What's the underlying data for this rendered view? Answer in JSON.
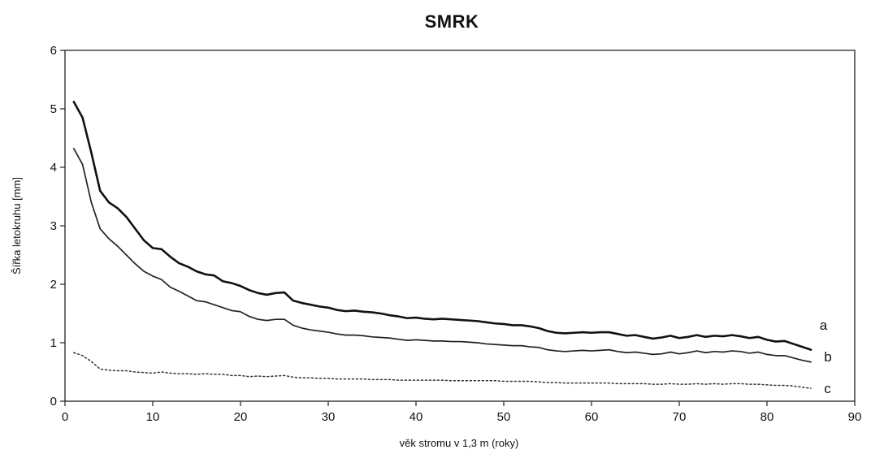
{
  "chart_data": {
    "type": "line",
    "title": "SMRK",
    "xlabel": "věk stromu v 1,3 m (roky)",
    "ylabel": "Šířka letokruhu [mm]",
    "xlim": [
      0,
      90
    ],
    "ylim": [
      0,
      6
    ],
    "xticks": [
      "0",
      "10",
      "20",
      "30",
      "40",
      "50",
      "60",
      "70",
      "80",
      "90"
    ],
    "yticks": [
      "0",
      "1",
      "2",
      "3",
      "4",
      "5",
      "6"
    ],
    "grid": false,
    "legend": "none",
    "series": [
      {
        "name": "a",
        "style": "solid-thick",
        "color": "#111111",
        "points": [
          [
            1,
            5.12
          ],
          [
            2,
            4.85
          ],
          [
            3,
            4.25
          ],
          [
            4,
            3.6
          ],
          [
            5,
            3.4
          ],
          [
            6,
            3.3
          ],
          [
            7,
            3.15
          ],
          [
            8,
            2.95
          ],
          [
            9,
            2.75
          ],
          [
            10,
            2.62
          ],
          [
            11,
            2.6
          ],
          [
            12,
            2.47
          ],
          [
            13,
            2.36
          ],
          [
            14,
            2.3
          ],
          [
            15,
            2.22
          ],
          [
            16,
            2.17
          ],
          [
            17,
            2.15
          ],
          [
            18,
            2.05
          ],
          [
            19,
            2.02
          ],
          [
            20,
            1.97
          ],
          [
            21,
            1.9
          ],
          [
            22,
            1.85
          ],
          [
            23,
            1.82
          ],
          [
            24,
            1.85
          ],
          [
            25,
            1.86
          ],
          [
            26,
            1.72
          ],
          [
            27,
            1.68
          ],
          [
            28,
            1.65
          ],
          [
            29,
            1.62
          ],
          [
            30,
            1.6
          ],
          [
            31,
            1.56
          ],
          [
            32,
            1.54
          ],
          [
            33,
            1.55
          ],
          [
            34,
            1.53
          ],
          [
            35,
            1.52
          ],
          [
            36,
            1.5
          ],
          [
            37,
            1.47
          ],
          [
            38,
            1.45
          ],
          [
            39,
            1.42
          ],
          [
            40,
            1.43
          ],
          [
            41,
            1.41
          ],
          [
            42,
            1.4
          ],
          [
            43,
            1.41
          ],
          [
            44,
            1.4
          ],
          [
            45,
            1.39
          ],
          [
            46,
            1.38
          ],
          [
            47,
            1.37
          ],
          [
            48,
            1.35
          ],
          [
            49,
            1.33
          ],
          [
            50,
            1.32
          ],
          [
            51,
            1.3
          ],
          [
            52,
            1.3
          ],
          [
            53,
            1.28
          ],
          [
            54,
            1.25
          ],
          [
            55,
            1.2
          ],
          [
            56,
            1.17
          ],
          [
            57,
            1.16
          ],
          [
            58,
            1.17
          ],
          [
            59,
            1.18
          ],
          [
            60,
            1.17
          ],
          [
            61,
            1.18
          ],
          [
            62,
            1.18
          ],
          [
            63,
            1.15
          ],
          [
            64,
            1.12
          ],
          [
            65,
            1.13
          ],
          [
            66,
            1.1
          ],
          [
            67,
            1.07
          ],
          [
            68,
            1.09
          ],
          [
            69,
            1.12
          ],
          [
            70,
            1.08
          ],
          [
            71,
            1.1
          ],
          [
            72,
            1.13
          ],
          [
            73,
            1.1
          ],
          [
            74,
            1.12
          ],
          [
            75,
            1.11
          ],
          [
            76,
            1.13
          ],
          [
            77,
            1.11
          ],
          [
            78,
            1.08
          ],
          [
            79,
            1.1
          ],
          [
            80,
            1.05
          ],
          [
            81,
            1.02
          ],
          [
            82,
            1.03
          ],
          [
            83,
            0.98
          ],
          [
            84,
            0.93
          ],
          [
            85,
            0.88
          ]
        ]
      },
      {
        "name": "b",
        "style": "solid-thin",
        "color": "#222222",
        "points": [
          [
            1,
            4.32
          ],
          [
            2,
            4.05
          ],
          [
            3,
            3.4
          ],
          [
            4,
            2.95
          ],
          [
            5,
            2.78
          ],
          [
            6,
            2.65
          ],
          [
            7,
            2.5
          ],
          [
            8,
            2.35
          ],
          [
            9,
            2.22
          ],
          [
            10,
            2.14
          ],
          [
            11,
            2.08
          ],
          [
            12,
            1.95
          ],
          [
            13,
            1.88
          ],
          [
            14,
            1.8
          ],
          [
            15,
            1.72
          ],
          [
            16,
            1.7
          ],
          [
            17,
            1.65
          ],
          [
            18,
            1.6
          ],
          [
            19,
            1.55
          ],
          [
            20,
            1.53
          ],
          [
            21,
            1.45
          ],
          [
            22,
            1.4
          ],
          [
            23,
            1.38
          ],
          [
            24,
            1.4
          ],
          [
            25,
            1.4
          ],
          [
            26,
            1.3
          ],
          [
            27,
            1.25
          ],
          [
            28,
            1.22
          ],
          [
            29,
            1.2
          ],
          [
            30,
            1.18
          ],
          [
            31,
            1.15
          ],
          [
            32,
            1.13
          ],
          [
            33,
            1.13
          ],
          [
            34,
            1.12
          ],
          [
            35,
            1.1
          ],
          [
            36,
            1.09
          ],
          [
            37,
            1.08
          ],
          [
            38,
            1.06
          ],
          [
            39,
            1.04
          ],
          [
            40,
            1.05
          ],
          [
            41,
            1.04
          ],
          [
            42,
            1.03
          ],
          [
            43,
            1.03
          ],
          [
            44,
            1.02
          ],
          [
            45,
            1.02
          ],
          [
            46,
            1.01
          ],
          [
            47,
            1.0
          ],
          [
            48,
            0.98
          ],
          [
            49,
            0.97
          ],
          [
            50,
            0.96
          ],
          [
            51,
            0.95
          ],
          [
            52,
            0.95
          ],
          [
            53,
            0.93
          ],
          [
            54,
            0.92
          ],
          [
            55,
            0.88
          ],
          [
            56,
            0.86
          ],
          [
            57,
            0.85
          ],
          [
            58,
            0.86
          ],
          [
            59,
            0.87
          ],
          [
            60,
            0.86
          ],
          [
            61,
            0.87
          ],
          [
            62,
            0.88
          ],
          [
            63,
            0.85
          ],
          [
            64,
            0.83
          ],
          [
            65,
            0.84
          ],
          [
            66,
            0.82
          ],
          [
            67,
            0.8
          ],
          [
            68,
            0.81
          ],
          [
            69,
            0.84
          ],
          [
            70,
            0.81
          ],
          [
            71,
            0.83
          ],
          [
            72,
            0.86
          ],
          [
            73,
            0.83
          ],
          [
            74,
            0.85
          ],
          [
            75,
            0.84
          ],
          [
            76,
            0.86
          ],
          [
            77,
            0.85
          ],
          [
            78,
            0.82
          ],
          [
            79,
            0.84
          ],
          [
            80,
            0.8
          ],
          [
            81,
            0.78
          ],
          [
            82,
            0.78
          ],
          [
            83,
            0.74
          ],
          [
            84,
            0.7
          ],
          [
            85,
            0.67
          ]
        ]
      },
      {
        "name": "c",
        "style": "dotted",
        "color": "#333333",
        "points": [
          [
            1,
            0.83
          ],
          [
            2,
            0.78
          ],
          [
            3,
            0.68
          ],
          [
            4,
            0.55
          ],
          [
            5,
            0.53
          ],
          [
            6,
            0.52
          ],
          [
            7,
            0.52
          ],
          [
            8,
            0.5
          ],
          [
            9,
            0.49
          ],
          [
            10,
            0.48
          ],
          [
            11,
            0.5
          ],
          [
            12,
            0.48
          ],
          [
            13,
            0.47
          ],
          [
            14,
            0.47
          ],
          [
            15,
            0.46
          ],
          [
            16,
            0.47
          ],
          [
            17,
            0.46
          ],
          [
            18,
            0.46
          ],
          [
            19,
            0.44
          ],
          [
            20,
            0.44
          ],
          [
            21,
            0.42
          ],
          [
            22,
            0.43
          ],
          [
            23,
            0.42
          ],
          [
            24,
            0.43
          ],
          [
            25,
            0.44
          ],
          [
            26,
            0.41
          ],
          [
            27,
            0.4
          ],
          [
            28,
            0.4
          ],
          [
            29,
            0.39
          ],
          [
            30,
            0.39
          ],
          [
            31,
            0.38
          ],
          [
            32,
            0.38
          ],
          [
            33,
            0.38
          ],
          [
            34,
            0.38
          ],
          [
            35,
            0.37
          ],
          [
            36,
            0.37
          ],
          [
            37,
            0.37
          ],
          [
            38,
            0.36
          ],
          [
            39,
            0.36
          ],
          [
            40,
            0.36
          ],
          [
            41,
            0.36
          ],
          [
            42,
            0.36
          ],
          [
            43,
            0.36
          ],
          [
            44,
            0.35
          ],
          [
            45,
            0.35
          ],
          [
            46,
            0.35
          ],
          [
            47,
            0.35
          ],
          [
            48,
            0.35
          ],
          [
            49,
            0.35
          ],
          [
            50,
            0.34
          ],
          [
            51,
            0.34
          ],
          [
            52,
            0.34
          ],
          [
            53,
            0.34
          ],
          [
            54,
            0.33
          ],
          [
            55,
            0.32
          ],
          [
            56,
            0.32
          ],
          [
            57,
            0.31
          ],
          [
            58,
            0.31
          ],
          [
            59,
            0.31
          ],
          [
            60,
            0.31
          ],
          [
            61,
            0.31
          ],
          [
            62,
            0.31
          ],
          [
            63,
            0.3
          ],
          [
            64,
            0.3
          ],
          [
            65,
            0.3
          ],
          [
            66,
            0.3
          ],
          [
            67,
            0.29
          ],
          [
            68,
            0.29
          ],
          [
            69,
            0.3
          ],
          [
            70,
            0.29
          ],
          [
            71,
            0.29
          ],
          [
            72,
            0.3
          ],
          [
            73,
            0.29
          ],
          [
            74,
            0.3
          ],
          [
            75,
            0.29
          ],
          [
            76,
            0.3
          ],
          [
            77,
            0.3
          ],
          [
            78,
            0.29
          ],
          [
            79,
            0.29
          ],
          [
            80,
            0.28
          ],
          [
            81,
            0.27
          ],
          [
            82,
            0.27
          ],
          [
            83,
            0.26
          ],
          [
            84,
            0.24
          ],
          [
            85,
            0.22
          ]
        ]
      }
    ],
    "series_labels": [
      {
        "text": "a",
        "x": 86,
        "y": 1.22
      },
      {
        "text": "b",
        "x": 86.5,
        "y": 0.68
      },
      {
        "text": "c",
        "x": 86.5,
        "y": 0.14
      }
    ]
  }
}
